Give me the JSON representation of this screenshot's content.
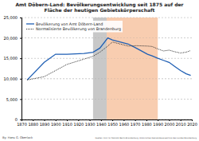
{
  "chart_data": {
    "type": "line",
    "title": "Amt Döbern-Land: Bevölkerungsentwicklung seit 1875 auf der Fläche der heutigen Gebietskörperschaft",
    "x": [
      1875,
      1890,
      1900,
      1910,
      1925,
      1933,
      1939,
      1946,
      1950,
      1964,
      1971,
      1981,
      1985,
      1990,
      1995,
      2000,
      2005,
      2010,
      2015,
      2019
    ],
    "series": [
      {
        "name": "Bevölkerung von Amt Döbern-Land",
        "color": "#1f5fb4",
        "line_style": "solid",
        "values": [
          9700,
          14000,
          16000,
          16000,
          16200,
          16500,
          17500,
          20000,
          19500,
          18500,
          17500,
          16000,
          15600,
          15000,
          14500,
          14000,
          13000,
          12000,
          11200,
          10800
        ]
      },
      {
        "name": "Normalisierte Bevölkerung von Brandenburg",
        "color": "#333333",
        "line_style": "dotted",
        "values": [
          9700,
          10500,
          12000,
          13500,
          14800,
          15500,
          16500,
          18000,
          19000,
          18000,
          18100,
          18000,
          17900,
          17300,
          16800,
          17000,
          16600,
          16300,
          16500,
          16900
        ]
      }
    ],
    "shaded_periods": [
      {
        "from": 1933,
        "to": 1945,
        "color": "#c8c8c8"
      },
      {
        "from": 1945,
        "to": 1990,
        "color": "#f8cdb0"
      }
    ],
    "xlim": [
      1870,
      2020
    ],
    "xticks": [
      1870,
      1880,
      1890,
      1900,
      1910,
      1920,
      1930,
      1940,
      1950,
      1960,
      1970,
      1980,
      1990,
      2000,
      2010,
      2020
    ],
    "ylim": [
      0,
      25000
    ],
    "yticks": [
      0,
      {
        "value": 5000,
        "label": "5,000"
      },
      {
        "value": 10000,
        "label": "10,000"
      },
      {
        "value": 15000,
        "label": "15,000"
      },
      {
        "value": 20000,
        "label": "20,000"
      },
      {
        "value": 25000,
        "label": "25,000"
      }
    ],
    "grid": true,
    "legend": "upper left",
    "footer": [
      "By: Hans G. Oberlack",
      "Quellen: Amt für Statistik Berlin-Brandenburg, Historisches Gemeindeverzeichnis des Landes Brandenburg"
    ]
  }
}
